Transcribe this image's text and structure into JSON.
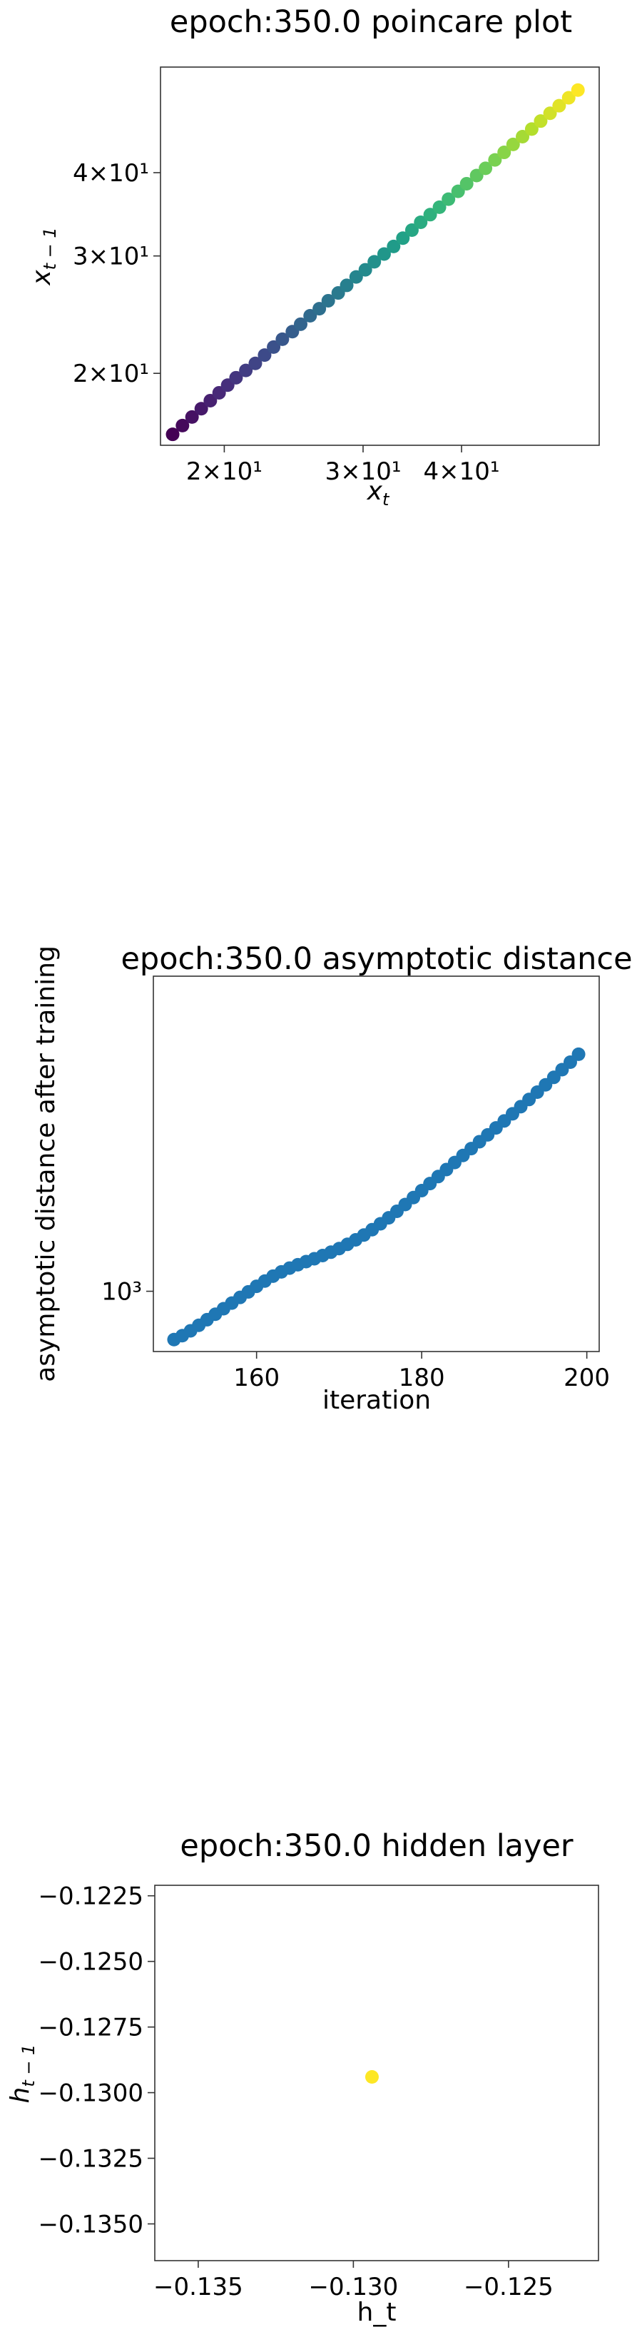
{
  "chart_data": [
    {
      "type": "scatter",
      "title": "epoch:350.0 poincare plot",
      "xlabel": "x_t",
      "ylabel": "x_{t−1}",
      "xscale": "log",
      "yscale": "log",
      "xlim": [
        16.6,
        59.8
      ],
      "ylim": [
        15.6,
        57.6
      ],
      "xticks": [
        {
          "value": 20,
          "label": "2×10¹"
        },
        {
          "value": 30,
          "label": "3×10¹"
        },
        {
          "value": 40,
          "label": "4×10¹"
        }
      ],
      "yticks": [
        {
          "value": 20,
          "label": "2×10¹"
        },
        {
          "value": 30,
          "label": "3×10¹"
        },
        {
          "value": 40,
          "label": "4×10¹"
        }
      ],
      "colormap": "viridis",
      "x": [
        17.2,
        17.7,
        18.2,
        18.7,
        19.2,
        19.7,
        20.2,
        20.7,
        21.3,
        21.9,
        22.5,
        23.1,
        23.7,
        24.4,
        25.0,
        25.7,
        26.4,
        27.1,
        27.9,
        28.6,
        29.4,
        30.2,
        31.0,
        31.9,
        32.8,
        33.7,
        34.6,
        35.5,
        36.5,
        37.5,
        38.5,
        39.6,
        40.6,
        41.8,
        42.9,
        44.1,
        45.3,
        46.5,
        47.8,
        49.1,
        50.4,
        51.8,
        53.2,
        54.7,
        56.2
      ],
      "y": [
        16.2,
        16.7,
        17.2,
        17.7,
        18.2,
        18.7,
        19.2,
        19.7,
        20.2,
        20.7,
        21.3,
        21.9,
        22.5,
        23.1,
        23.7,
        24.4,
        25.0,
        25.7,
        26.4,
        27.1,
        27.9,
        28.6,
        29.4,
        30.2,
        31.0,
        31.9,
        32.8,
        33.7,
        34.6,
        35.5,
        36.5,
        37.5,
        38.5,
        39.6,
        40.6,
        41.8,
        42.9,
        44.1,
        45.3,
        46.5,
        47.8,
        49.1,
        50.4,
        51.8,
        53.2
      ]
    },
    {
      "type": "scatter",
      "title": "epoch:350.0 asymptotic distance",
      "xlabel": "iteration",
      "ylabel": "asymptotic distance after training",
      "xscale": "linear",
      "yscale": "log",
      "xlim": [
        147.5,
        201.5
      ],
      "ylim": [
        750,
        4500
      ],
      "xticks": [
        {
          "value": 160,
          "label": "160"
        },
        {
          "value": 180,
          "label": "180"
        },
        {
          "value": 200,
          "label": "200"
        }
      ],
      "yticks": [
        {
          "value": 1000,
          "label": "10³"
        }
      ],
      "color": "#1f77b4",
      "x": [
        150,
        151,
        152,
        153,
        154,
        155,
        156,
        157,
        158,
        159,
        160,
        161,
        162,
        163,
        164,
        165,
        166,
        167,
        168,
        169,
        170,
        171,
        172,
        173,
        174,
        175,
        176,
        177,
        178,
        179,
        180,
        181,
        182,
        183,
        184,
        185,
        186,
        187,
        188,
        189,
        190,
        191,
        192,
        193,
        194,
        195,
        196,
        197,
        198,
        199
      ],
      "y": [
        794,
        809,
        828,
        850,
        873,
        896,
        920,
        945,
        971,
        997,
        1024,
        1050,
        1075,
        1097,
        1117,
        1135,
        1152,
        1168,
        1186,
        1205,
        1226,
        1251,
        1278,
        1308,
        1342,
        1380,
        1420,
        1465,
        1513,
        1564,
        1617,
        1672,
        1729,
        1788,
        1849,
        1912,
        1976,
        2042,
        2110,
        2181,
        2255,
        2333,
        2414,
        2498,
        2587,
        2679,
        2776,
        2880,
        2985,
        3100
      ]
    },
    {
      "type": "scatter",
      "title": "epoch:350.0 hidden layer",
      "xlabel": "h_t",
      "ylabel": "h_{t−1}",
      "xscale": "linear",
      "yscale": "linear",
      "xlim": [
        -0.1364,
        -0.1221
      ],
      "ylim": [
        -0.1364,
        -0.1221
      ],
      "xticks": [
        {
          "value": -0.135,
          "label": "−0.135"
        },
        {
          "value": -0.13,
          "label": "−0.130"
        },
        {
          "value": -0.125,
          "label": "−0.125"
        }
      ],
      "yticks": [
        {
          "value": -0.1225,
          "label": "−0.1225"
        },
        {
          "value": -0.125,
          "label": "−0.1250"
        },
        {
          "value": -0.1275,
          "label": "−0.1275"
        },
        {
          "value": -0.13,
          "label": "−0.1300"
        },
        {
          "value": -0.1325,
          "label": "−0.1325"
        },
        {
          "value": -0.135,
          "label": "−0.1350"
        }
      ],
      "color": "#fde725",
      "x": [
        -0.1294
      ],
      "y": [
        -0.1294
      ]
    }
  ]
}
